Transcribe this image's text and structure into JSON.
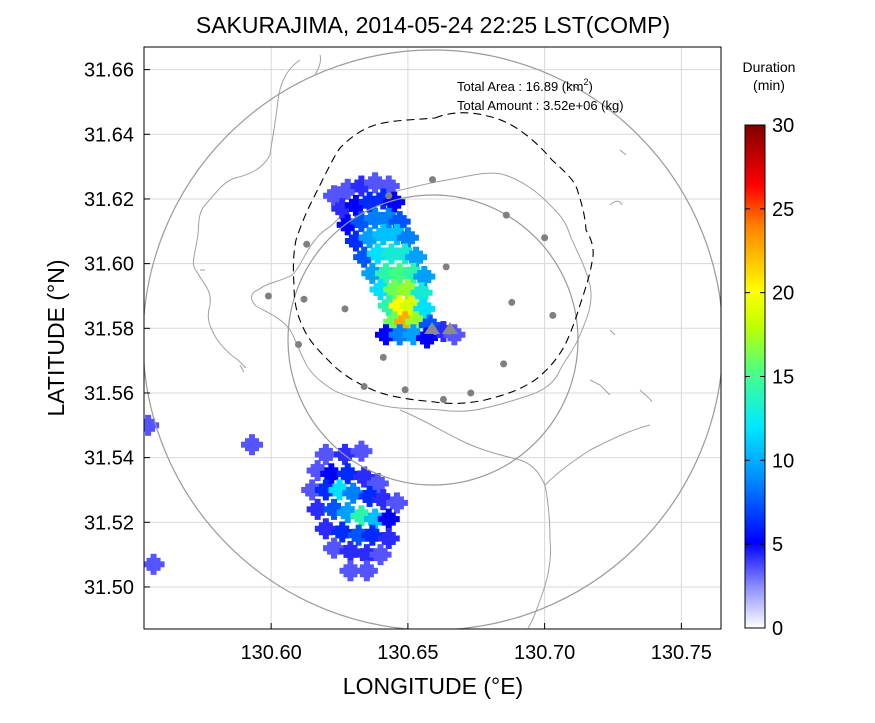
{
  "title": "SAKURAJIMA, 2014-05-24 22:25 LST(COMP)",
  "annotation": {
    "area_label": "Total Area   : 16.89 (km",
    "area_sup": "2",
    "area_close": ")",
    "amount_label": "Total Amount : 3.52e+06 (kg)"
  },
  "colorbar": {
    "title_line1": "Duration",
    "title_line2": "(min)",
    "ticks": [
      "0",
      "5",
      "10",
      "15",
      "20",
      "25",
      "30"
    ],
    "range": [
      0,
      30
    ],
    "colors": [
      "#ffffff",
      "#8080ff",
      "#0000ff",
      "#0080ff",
      "#00e0ff",
      "#40ff80",
      "#c0ff00",
      "#ffff00",
      "#ff8000",
      "#ff0000",
      "#800000"
    ]
  },
  "chart_data": {
    "type": "heatmap",
    "title": "SAKURAJIMA, 2014-05-24 22:25 LST(COMP)",
    "xlabel": "LONGITUDE (°E)",
    "ylabel": "LATITUDE (°N)",
    "xlim": [
      130.5535,
      130.7645
    ],
    "ylim": [
      31.487,
      31.667
    ],
    "xticks": [
      "130.60",
      "130.65",
      "130.70",
      "130.75"
    ],
    "yticks": [
      "31.50",
      "31.52",
      "31.54",
      "31.56",
      "31.58",
      "31.60",
      "31.62",
      "31.64",
      "31.66"
    ],
    "grid": true,
    "colorbar_label": "Duration (min)",
    "clim": [
      0,
      30
    ],
    "total_area_km2": 16.89,
    "total_amount_kg": 3520000.0,
    "cells": [
      {
        "lon": 130.623,
        "lat": 31.621,
        "v": 4
      },
      {
        "lon": 130.628,
        "lat": 31.623,
        "v": 4
      },
      {
        "lon": 130.633,
        "lat": 31.624,
        "v": 5
      },
      {
        "lon": 130.638,
        "lat": 31.625,
        "v": 4
      },
      {
        "lon": 130.643,
        "lat": 31.624,
        "v": 4
      },
      {
        "lon": 130.626,
        "lat": 31.617,
        "v": 5
      },
      {
        "lon": 130.631,
        "lat": 31.618,
        "v": 6
      },
      {
        "lon": 130.636,
        "lat": 31.619,
        "v": 7
      },
      {
        "lon": 130.641,
        "lat": 31.62,
        "v": 7
      },
      {
        "lon": 130.645,
        "lat": 31.619,
        "v": 6
      },
      {
        "lon": 130.628,
        "lat": 31.612,
        "v": 6
      },
      {
        "lon": 130.633,
        "lat": 31.613,
        "v": 8
      },
      {
        "lon": 130.638,
        "lat": 31.614,
        "v": 9
      },
      {
        "lon": 130.643,
        "lat": 31.614,
        "v": 9
      },
      {
        "lon": 130.647,
        "lat": 31.613,
        "v": 8
      },
      {
        "lon": 130.631,
        "lat": 31.607,
        "v": 7
      },
      {
        "lon": 130.636,
        "lat": 31.608,
        "v": 10
      },
      {
        "lon": 130.641,
        "lat": 31.609,
        "v": 11
      },
      {
        "lon": 130.646,
        "lat": 31.609,
        "v": 11
      },
      {
        "lon": 130.65,
        "lat": 31.608,
        "v": 9
      },
      {
        "lon": 130.634,
        "lat": 31.602,
        "v": 8
      },
      {
        "lon": 130.639,
        "lat": 31.603,
        "v": 12
      },
      {
        "lon": 130.644,
        "lat": 31.603,
        "v": 13
      },
      {
        "lon": 130.649,
        "lat": 31.603,
        "v": 13
      },
      {
        "lon": 130.653,
        "lat": 31.602,
        "v": 10
      },
      {
        "lon": 130.637,
        "lat": 31.597,
        "v": 10
      },
      {
        "lon": 130.642,
        "lat": 31.597,
        "v": 14
      },
      {
        "lon": 130.647,
        "lat": 31.597,
        "v": 15
      },
      {
        "lon": 130.652,
        "lat": 31.597,
        "v": 14
      },
      {
        "lon": 130.656,
        "lat": 31.596,
        "v": 10
      },
      {
        "lon": 130.64,
        "lat": 31.592,
        "v": 12
      },
      {
        "lon": 130.645,
        "lat": 31.592,
        "v": 16
      },
      {
        "lon": 130.65,
        "lat": 31.592,
        "v": 17
      },
      {
        "lon": 130.655,
        "lat": 31.591,
        "v": 13
      },
      {
        "lon": 130.643,
        "lat": 31.587,
        "v": 14
      },
      {
        "lon": 130.647,
        "lat": 31.587,
        "v": 21
      },
      {
        "lon": 130.651,
        "lat": 31.587,
        "v": 19
      },
      {
        "lon": 130.656,
        "lat": 31.586,
        "v": 12
      },
      {
        "lon": 130.645,
        "lat": 31.582,
        "v": 16
      },
      {
        "lon": 130.649,
        "lat": 31.582,
        "v": 23
      },
      {
        "lon": 130.653,
        "lat": 31.582,
        "v": 17
      },
      {
        "lon": 130.658,
        "lat": 31.581,
        "v": 8
      },
      {
        "lon": 130.642,
        "lat": 31.578,
        "v": 6
      },
      {
        "lon": 130.647,
        "lat": 31.578,
        "v": 9
      },
      {
        "lon": 130.652,
        "lat": 31.578,
        "v": 10
      },
      {
        "lon": 130.657,
        "lat": 31.577,
        "v": 6
      },
      {
        "lon": 130.663,
        "lat": 31.579,
        "v": 5
      },
      {
        "lon": 130.667,
        "lat": 31.578,
        "v": 4
      },
      {
        "lon": 130.62,
        "lat": 31.541,
        "v": 4
      },
      {
        "lon": 130.627,
        "lat": 31.541,
        "v": 5
      },
      {
        "lon": 130.633,
        "lat": 31.542,
        "v": 4
      },
      {
        "lon": 130.617,
        "lat": 31.536,
        "v": 4
      },
      {
        "lon": 130.622,
        "lat": 31.535,
        "v": 6
      },
      {
        "lon": 130.628,
        "lat": 31.535,
        "v": 7
      },
      {
        "lon": 130.634,
        "lat": 31.534,
        "v": 5
      },
      {
        "lon": 130.639,
        "lat": 31.532,
        "v": 4
      },
      {
        "lon": 130.615,
        "lat": 31.53,
        "v": 4
      },
      {
        "lon": 130.62,
        "lat": 31.53,
        "v": 7
      },
      {
        "lon": 130.625,
        "lat": 31.53,
        "v": 12
      },
      {
        "lon": 130.63,
        "lat": 31.529,
        "v": 9
      },
      {
        "lon": 130.636,
        "lat": 31.528,
        "v": 7
      },
      {
        "lon": 130.641,
        "lat": 31.527,
        "v": 5
      },
      {
        "lon": 130.646,
        "lat": 31.526,
        "v": 4
      },
      {
        "lon": 130.617,
        "lat": 31.524,
        "v": 5
      },
      {
        "lon": 130.623,
        "lat": 31.524,
        "v": 8
      },
      {
        "lon": 130.628,
        "lat": 31.523,
        "v": 10
      },
      {
        "lon": 130.633,
        "lat": 31.522,
        "v": 14
      },
      {
        "lon": 130.638,
        "lat": 31.521,
        "v": 11
      },
      {
        "lon": 130.643,
        "lat": 31.521,
        "v": 6
      },
      {
        "lon": 130.62,
        "lat": 31.518,
        "v": 5
      },
      {
        "lon": 130.626,
        "lat": 31.517,
        "v": 7
      },
      {
        "lon": 130.632,
        "lat": 31.516,
        "v": 8
      },
      {
        "lon": 130.637,
        "lat": 31.516,
        "v": 7
      },
      {
        "lon": 130.643,
        "lat": 31.515,
        "v": 5
      },
      {
        "lon": 130.623,
        "lat": 31.512,
        "v": 4
      },
      {
        "lon": 130.629,
        "lat": 31.511,
        "v": 5
      },
      {
        "lon": 130.635,
        "lat": 31.51,
        "v": 5
      },
      {
        "lon": 130.64,
        "lat": 31.51,
        "v": 4
      },
      {
        "lon": 130.629,
        "lat": 31.505,
        "v": 4
      },
      {
        "lon": 130.635,
        "lat": 31.505,
        "v": 4
      },
      {
        "lon": 130.593,
        "lat": 31.544,
        "v": 4
      },
      {
        "lon": 130.555,
        "lat": 31.55,
        "v": 4
      },
      {
        "lon": 130.557,
        "lat": 31.507,
        "v": 4
      }
    ],
    "stations": [
      {
        "lon": 130.659,
        "lat": 31.626
      },
      {
        "lon": 130.643,
        "lat": 31.621
      },
      {
        "lon": 130.686,
        "lat": 31.615
      },
      {
        "lon": 130.7,
        "lat": 31.608
      },
      {
        "lon": 130.613,
        "lat": 31.606
      },
      {
        "lon": 130.664,
        "lat": 31.599
      },
      {
        "lon": 130.599,
        "lat": 31.59
      },
      {
        "lon": 130.612,
        "lat": 31.589
      },
      {
        "lon": 130.688,
        "lat": 31.588
      },
      {
        "lon": 130.627,
        "lat": 31.586
      },
      {
        "lon": 130.703,
        "lat": 31.584
      },
      {
        "lon": 130.665,
        "lat": 31.579
      },
      {
        "lon": 130.61,
        "lat": 31.575
      },
      {
        "lon": 130.641,
        "lat": 31.571
      },
      {
        "lon": 130.685,
        "lat": 31.569
      },
      {
        "lon": 130.634,
        "lat": 31.562
      },
      {
        "lon": 130.649,
        "lat": 31.561
      },
      {
        "lon": 130.673,
        "lat": 31.56
      },
      {
        "lon": 130.663,
        "lat": 31.558
      }
    ]
  }
}
